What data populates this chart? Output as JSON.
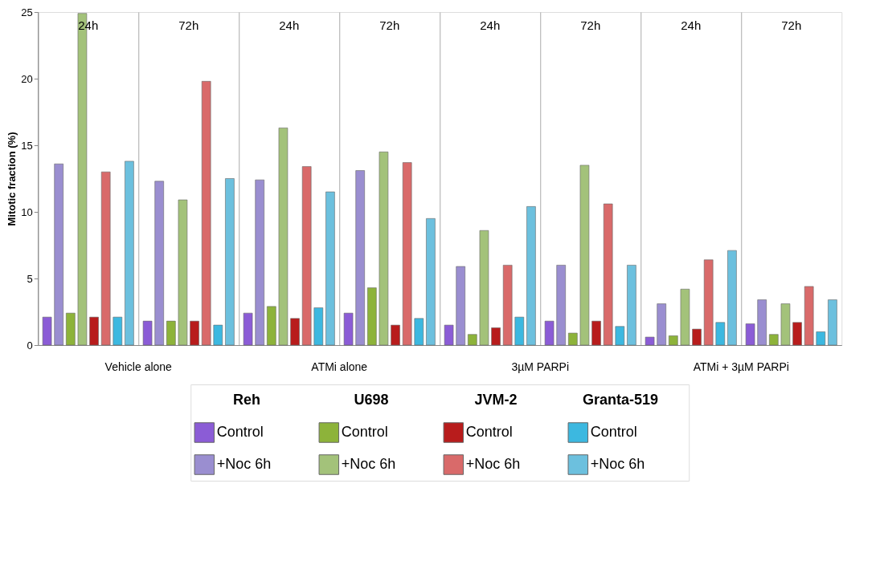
{
  "chart_data": {
    "type": "bar",
    "ylabel": "Mitotic fraction (%)",
    "categories": [
      "24h",
      "72h",
      "24h",
      "72h",
      "24h",
      "72h",
      "24h",
      "72h"
    ],
    "series": [
      {
        "name": "Control",
        "color": "#8b5cd6",
        "values": [
          2.1,
          1.8,
          2.4,
          2.4,
          1.5,
          1.8,
          0.6,
          1.6
        ]
      },
      {
        "name": "+Noc 6h",
        "color": "#9a8ed0",
        "values": [
          13.6,
          12.3,
          12.4,
          13.1,
          5.9,
          6.0,
          3.1,
          3.4
        ]
      },
      {
        "name": "Control",
        "color": "#8db33a",
        "values": [
          2.4,
          1.8,
          2.9,
          4.3,
          0.8,
          0.9,
          0.7,
          0.8
        ]
      },
      {
        "name": "+Noc 6h",
        "color": "#a3c27a",
        "values": [
          24.9,
          10.9,
          16.3,
          14.5,
          8.6,
          13.5,
          4.2,
          3.1
        ]
      },
      {
        "name": "Control",
        "color": "#b81c1c",
        "values": [
          2.1,
          1.8,
          2.0,
          1.5,
          1.3,
          1.8,
          1.2,
          1.7
        ]
      },
      {
        "name": "+Noc 6h",
        "color": "#d96a6a",
        "values": [
          13.0,
          19.8,
          13.4,
          13.7,
          6.0,
          10.6,
          6.4,
          4.4
        ]
      },
      {
        "name": "Control",
        "color": "#3cb8e0",
        "values": [
          2.1,
          1.5,
          2.8,
          2.0,
          2.1,
          1.4,
          1.7,
          1.0
        ]
      },
      {
        "name": "+Noc 6h",
        "color": "#6cc0de",
        "values": [
          13.8,
          12.5,
          11.5,
          9.5,
          10.4,
          6.0,
          7.1,
          3.4
        ]
      }
    ],
    "ylim": [
      0,
      25
    ],
    "yticks": [
      0,
      5,
      10,
      15,
      20,
      25
    ],
    "grid": "x",
    "legend": "bottom",
    "annotations": [
      "Vehicle alone",
      "ATMi alone",
      "3µM PARPi",
      "ATMi + 3µM PARPi",
      "Reh",
      "U698",
      "JVM-2",
      "Granta-519"
    ]
  }
}
